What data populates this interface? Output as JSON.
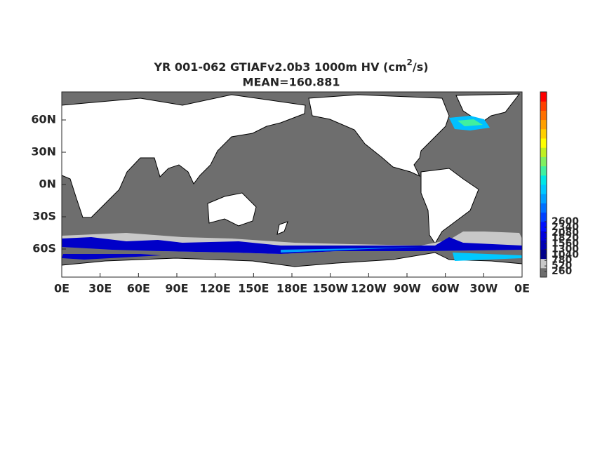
{
  "title": [
    "YR 001-062 GTIAFv2.0b3 1000m HV (cm",
    "2",
    "/s)"
  ],
  "subtitle": "MEAN=160.881",
  "x_ticks": [
    "0E",
    "30E",
    "60E",
    "90E",
    "120E",
    "150E",
    "180E",
    "150W",
    "120W",
    "90W",
    "60W",
    "30W",
    "0E"
  ],
  "y_ticks": [
    "60N",
    "30N",
    "0N",
    "30S",
    "60S"
  ],
  "colorbar": {
    "ticks": [
      260,
      520,
      780,
      1040,
      1300,
      1560,
      1820,
      2080,
      2340,
      2600
    ],
    "colors": [
      "#6e6e6e",
      "#c8c8c8",
      "#00008c",
      "#0000b4",
      "#0000dc",
      "#0010ff",
      "#0040ff",
      "#0070ff",
      "#00a0ff",
      "#00c8ff",
      "#00e6e6",
      "#40f0a0",
      "#80f060",
      "#c0f020",
      "#ffff00",
      "#ffd000",
      "#ffa000",
      "#ff7000",
      "#ff4000",
      "#ff0000"
    ]
  }
}
